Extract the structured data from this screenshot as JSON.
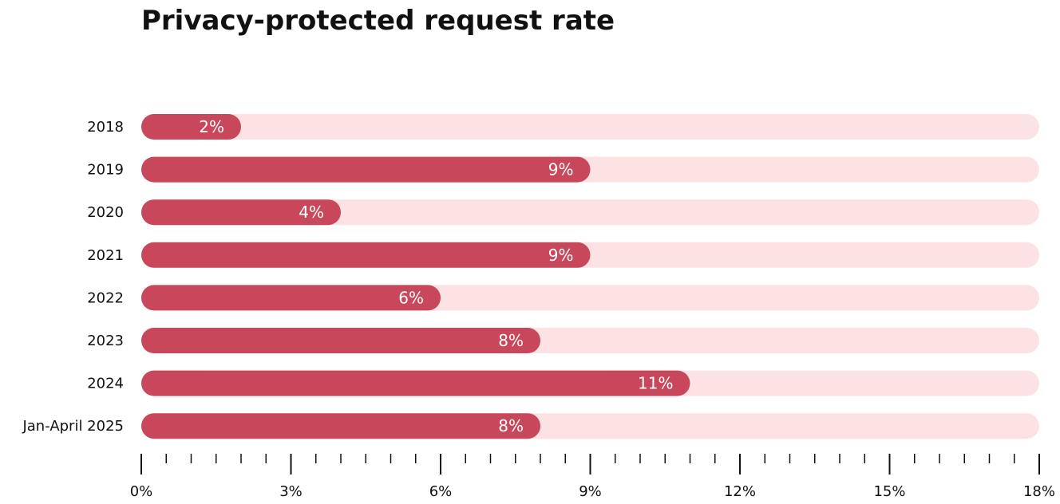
{
  "chart_data": {
    "type": "bar",
    "orientation": "horizontal",
    "title": "Privacy-protected request rate",
    "categories": [
      "2018",
      "2019",
      "2020",
      "2021",
      "2022",
      "2023",
      "2024",
      "Jan-April 2025"
    ],
    "values": [
      2,
      9,
      4,
      9,
      6,
      8,
      11,
      8
    ],
    "data_labels": [
      "2%",
      "9%",
      "4%",
      "9%",
      "6%",
      "8%",
      "11%",
      "8%"
    ],
    "unit": "%",
    "xlim": [
      0,
      18
    ],
    "x_ticks": [
      0,
      3,
      6,
      9,
      12,
      15,
      18
    ],
    "x_tick_labels": [
      "0%",
      "3%",
      "6%",
      "9%",
      "12%",
      "15%",
      "18%"
    ],
    "minor_tick_step": 0.5,
    "grid": false,
    "legend": "none",
    "colors": {
      "bar": "#c8475a",
      "track": "#fde2e4",
      "axis": "#111111"
    }
  }
}
